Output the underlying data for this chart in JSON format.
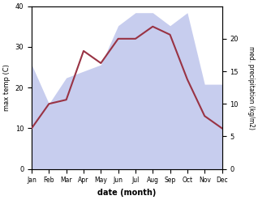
{
  "months": [
    "Jan",
    "Feb",
    "Mar",
    "Apr",
    "May",
    "Jun",
    "Jul",
    "Aug",
    "Sep",
    "Oct",
    "Nov",
    "Dec"
  ],
  "temp_max": [
    10,
    16,
    17,
    29,
    26,
    32,
    32,
    35,
    33,
    22,
    13,
    10
  ],
  "precipitation": [
    16,
    10,
    14,
    15,
    16,
    22,
    24,
    24,
    22,
    24,
    13,
    13
  ],
  "temp_ylim": [
    0,
    40
  ],
  "precip_ylim": [
    0,
    25
  ],
  "precip_scale_factor": 1.6,
  "precip_right_ticks": [
    0,
    5,
    10,
    15,
    20
  ],
  "fill_color": "#b0b8e8",
  "fill_alpha": 0.7,
  "line_color": "#993344",
  "line_width": 1.5,
  "xlabel": "date (month)",
  "ylabel_left": "max temp (C)",
  "ylabel_right": "med. precipitation (kg/m2)",
  "bg_color": "#ffffff"
}
